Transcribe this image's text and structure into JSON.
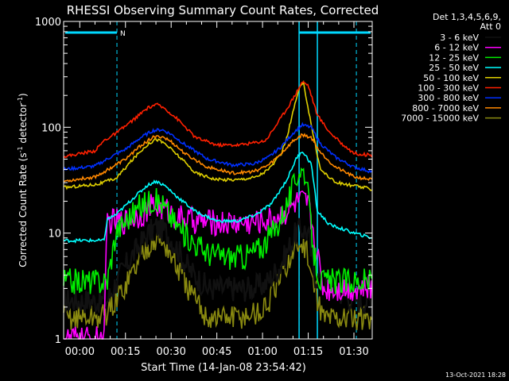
{
  "chart_data": {
    "type": "line",
    "title": "RHESSI Observing Summary Count Rates, Corrected",
    "xlabel": "Start Time (14-Jan-08 23:54:42)",
    "ylabel": "Corrected Count Rate (s",
    "ylabel_sup1": "-1",
    "ylabel_mid": " detector",
    "ylabel_sup2": "-1",
    "ylabel_end": ")",
    "yscale": "log",
    "ylim": [
      1,
      1000
    ],
    "xlim": [
      -5.3,
      96.0
    ],
    "x_unit": "minutes after 00:00",
    "x_ticks": [
      {
        "v": 0,
        "label": "00:00"
      },
      {
        "v": 15,
        "label": "00:15"
      },
      {
        "v": 30,
        "label": "00:30"
      },
      {
        "v": 45,
        "label": "00:45"
      },
      {
        "v": 60,
        "label": "01:00"
      },
      {
        "v": 75,
        "label": "01:15"
      },
      {
        "v": 90,
        "label": "01:30"
      }
    ],
    "y_ticks": [
      {
        "v": 1,
        "label": "1"
      },
      {
        "v": 10,
        "label": "10"
      },
      {
        "v": 100,
        "label": "100"
      },
      {
        "v": 1000,
        "label": "1000"
      }
    ],
    "legend_header": [
      "Det 1,3,4,5,6,9,",
      "Att 0"
    ],
    "legend_position": "right",
    "night_flag": "N",
    "night_markers": [
      12.2,
      72.0,
      90.8
    ],
    "night_bars": [
      [
        -5.3,
        12.2
      ],
      [
        72.0,
        96.0
      ]
    ],
    "sunlight_band": [
      72.0,
      78.0
    ],
    "sunlight_band_color": "#00d8ff",
    "footer_date": "13-Oct-2021 18:28",
    "series": [
      {
        "name": "3 - 6 keV",
        "color": "#000000",
        "x": [
          -5,
          9,
          12,
          17,
          22,
          25,
          28,
          31,
          36,
          42,
          50,
          56,
          61,
          66,
          71,
          73,
          75,
          77,
          82,
          88,
          92,
          96
        ],
        "y": [
          2.3,
          2.3,
          3.5,
          6,
          9.5,
          11.5,
          10.5,
          8,
          4.5,
          3,
          3,
          3,
          3.3,
          5,
          10,
          11,
          10,
          4,
          3.2,
          2.5,
          2.3,
          2.3
        ]
      },
      {
        "name": "6 - 12 keV",
        "color": "#ff00ff",
        "x": [
          -5,
          7,
          8,
          9,
          11,
          15,
          20,
          24,
          28,
          32,
          38,
          46,
          56,
          63,
          68,
          72,
          75,
          77,
          80
        ],
        "y": [
          1,
          1,
          1,
          13,
          13,
          13,
          15,
          18,
          17,
          14,
          13,
          12.5,
          12.5,
          13.5,
          16,
          20,
          19,
          9,
          3
        ]
      },
      {
        "name": "12 - 25 keV",
        "color": "#00ee00",
        "x": [
          -5,
          9,
          12,
          16,
          20,
          24,
          27,
          30,
          34,
          38,
          42,
          48,
          54,
          60,
          65,
          69,
          72,
          74,
          77,
          79,
          84,
          90,
          96
        ],
        "y": [
          3.5,
          3.5,
          10.5,
          14,
          18,
          21,
          19,
          14,
          10,
          8,
          6.5,
          6,
          6,
          7.5,
          12,
          22,
          40,
          38,
          6,
          3.5,
          3.5,
          3.5,
          3.5
        ]
      },
      {
        "name": "25 - 50 keV",
        "color": "#00ffff",
        "x": [
          -5,
          8,
          9,
          12,
          18,
          22,
          25,
          28,
          32,
          38,
          45,
          52,
          58,
          63,
          68,
          71,
          73,
          76,
          78,
          79,
          82,
          86,
          90,
          96
        ],
        "y": [
          8.5,
          8.5,
          13.5,
          15,
          22,
          28,
          31,
          28,
          22,
          16,
          13,
          13,
          15,
          19,
          32,
          50,
          60,
          45,
          16,
          15,
          12,
          11,
          10,
          9
        ]
      },
      {
        "name": "50 - 100 keV",
        "color": "#e0d000",
        "x": [
          -5,
          6,
          12,
          18,
          22,
          25,
          28,
          32,
          38,
          45,
          52,
          58,
          62,
          66,
          68,
          70,
          72,
          73.5,
          75,
          77,
          79,
          84,
          90,
          96
        ],
        "y": [
          27,
          29,
          33,
          52,
          68,
          78,
          70,
          55,
          37,
          32,
          32,
          34,
          40,
          55,
          80,
          140,
          230,
          260,
          150,
          75,
          40,
          30,
          28,
          26
        ]
      },
      {
        "name": "100 - 300 keV",
        "color": "#ff2000",
        "x": [
          -5,
          5,
          8,
          12,
          18,
          22,
          25,
          28,
          32,
          38,
          45,
          52,
          58,
          61,
          64,
          68,
          71,
          73,
          75,
          76,
          78,
          82,
          86,
          90,
          96
        ],
        "y": [
          53,
          60,
          75,
          88,
          120,
          150,
          165,
          150,
          120,
          80,
          68,
          68,
          72,
          75,
          100,
          150,
          210,
          270,
          250,
          200,
          130,
          90,
          70,
          57,
          54
        ]
      },
      {
        "name": "300 - 800 keV",
        "color": "#0030ff",
        "x": [
          -5,
          5,
          10,
          15,
          20,
          24,
          27,
          30,
          35,
          42,
          50,
          57,
          62,
          66,
          70,
          73,
          76,
          79,
          84,
          90,
          96
        ],
        "y": [
          40,
          43,
          52,
          62,
          80,
          93,
          95,
          86,
          67,
          50,
          44,
          45,
          52,
          65,
          88,
          105,
          100,
          70,
          52,
          42,
          38
        ]
      },
      {
        "name": "800 - 7000 keV",
        "color": "#ff8800",
        "x": [
          -5,
          5,
          10,
          15,
          20,
          24,
          27,
          30,
          35,
          42,
          50,
          57,
          62,
          66,
          70,
          73,
          76,
          79,
          84,
          90,
          96
        ],
        "y": [
          31,
          34,
          41,
          50,
          67,
          80,
          82,
          73,
          55,
          42,
          37,
          38,
          44,
          56,
          74,
          85,
          80,
          58,
          42,
          34,
          32
        ]
      },
      {
        "name": "7000 - 15000 keV",
        "color": "#8a8a10",
        "x": [
          -5,
          7,
          10,
          14,
          18,
          22,
          25,
          28,
          32,
          37,
          42,
          52,
          60,
          64,
          68,
          72,
          74,
          77,
          80,
          86,
          92,
          96
        ],
        "y": [
          1.6,
          1.6,
          1.9,
          2.9,
          4.7,
          7.5,
          8.8,
          7.8,
          4.7,
          2.5,
          1.6,
          1.6,
          1.8,
          2.8,
          5.2,
          8,
          7.4,
          3,
          1.6,
          1.6,
          1.6,
          1.6
        ]
      }
    ]
  }
}
